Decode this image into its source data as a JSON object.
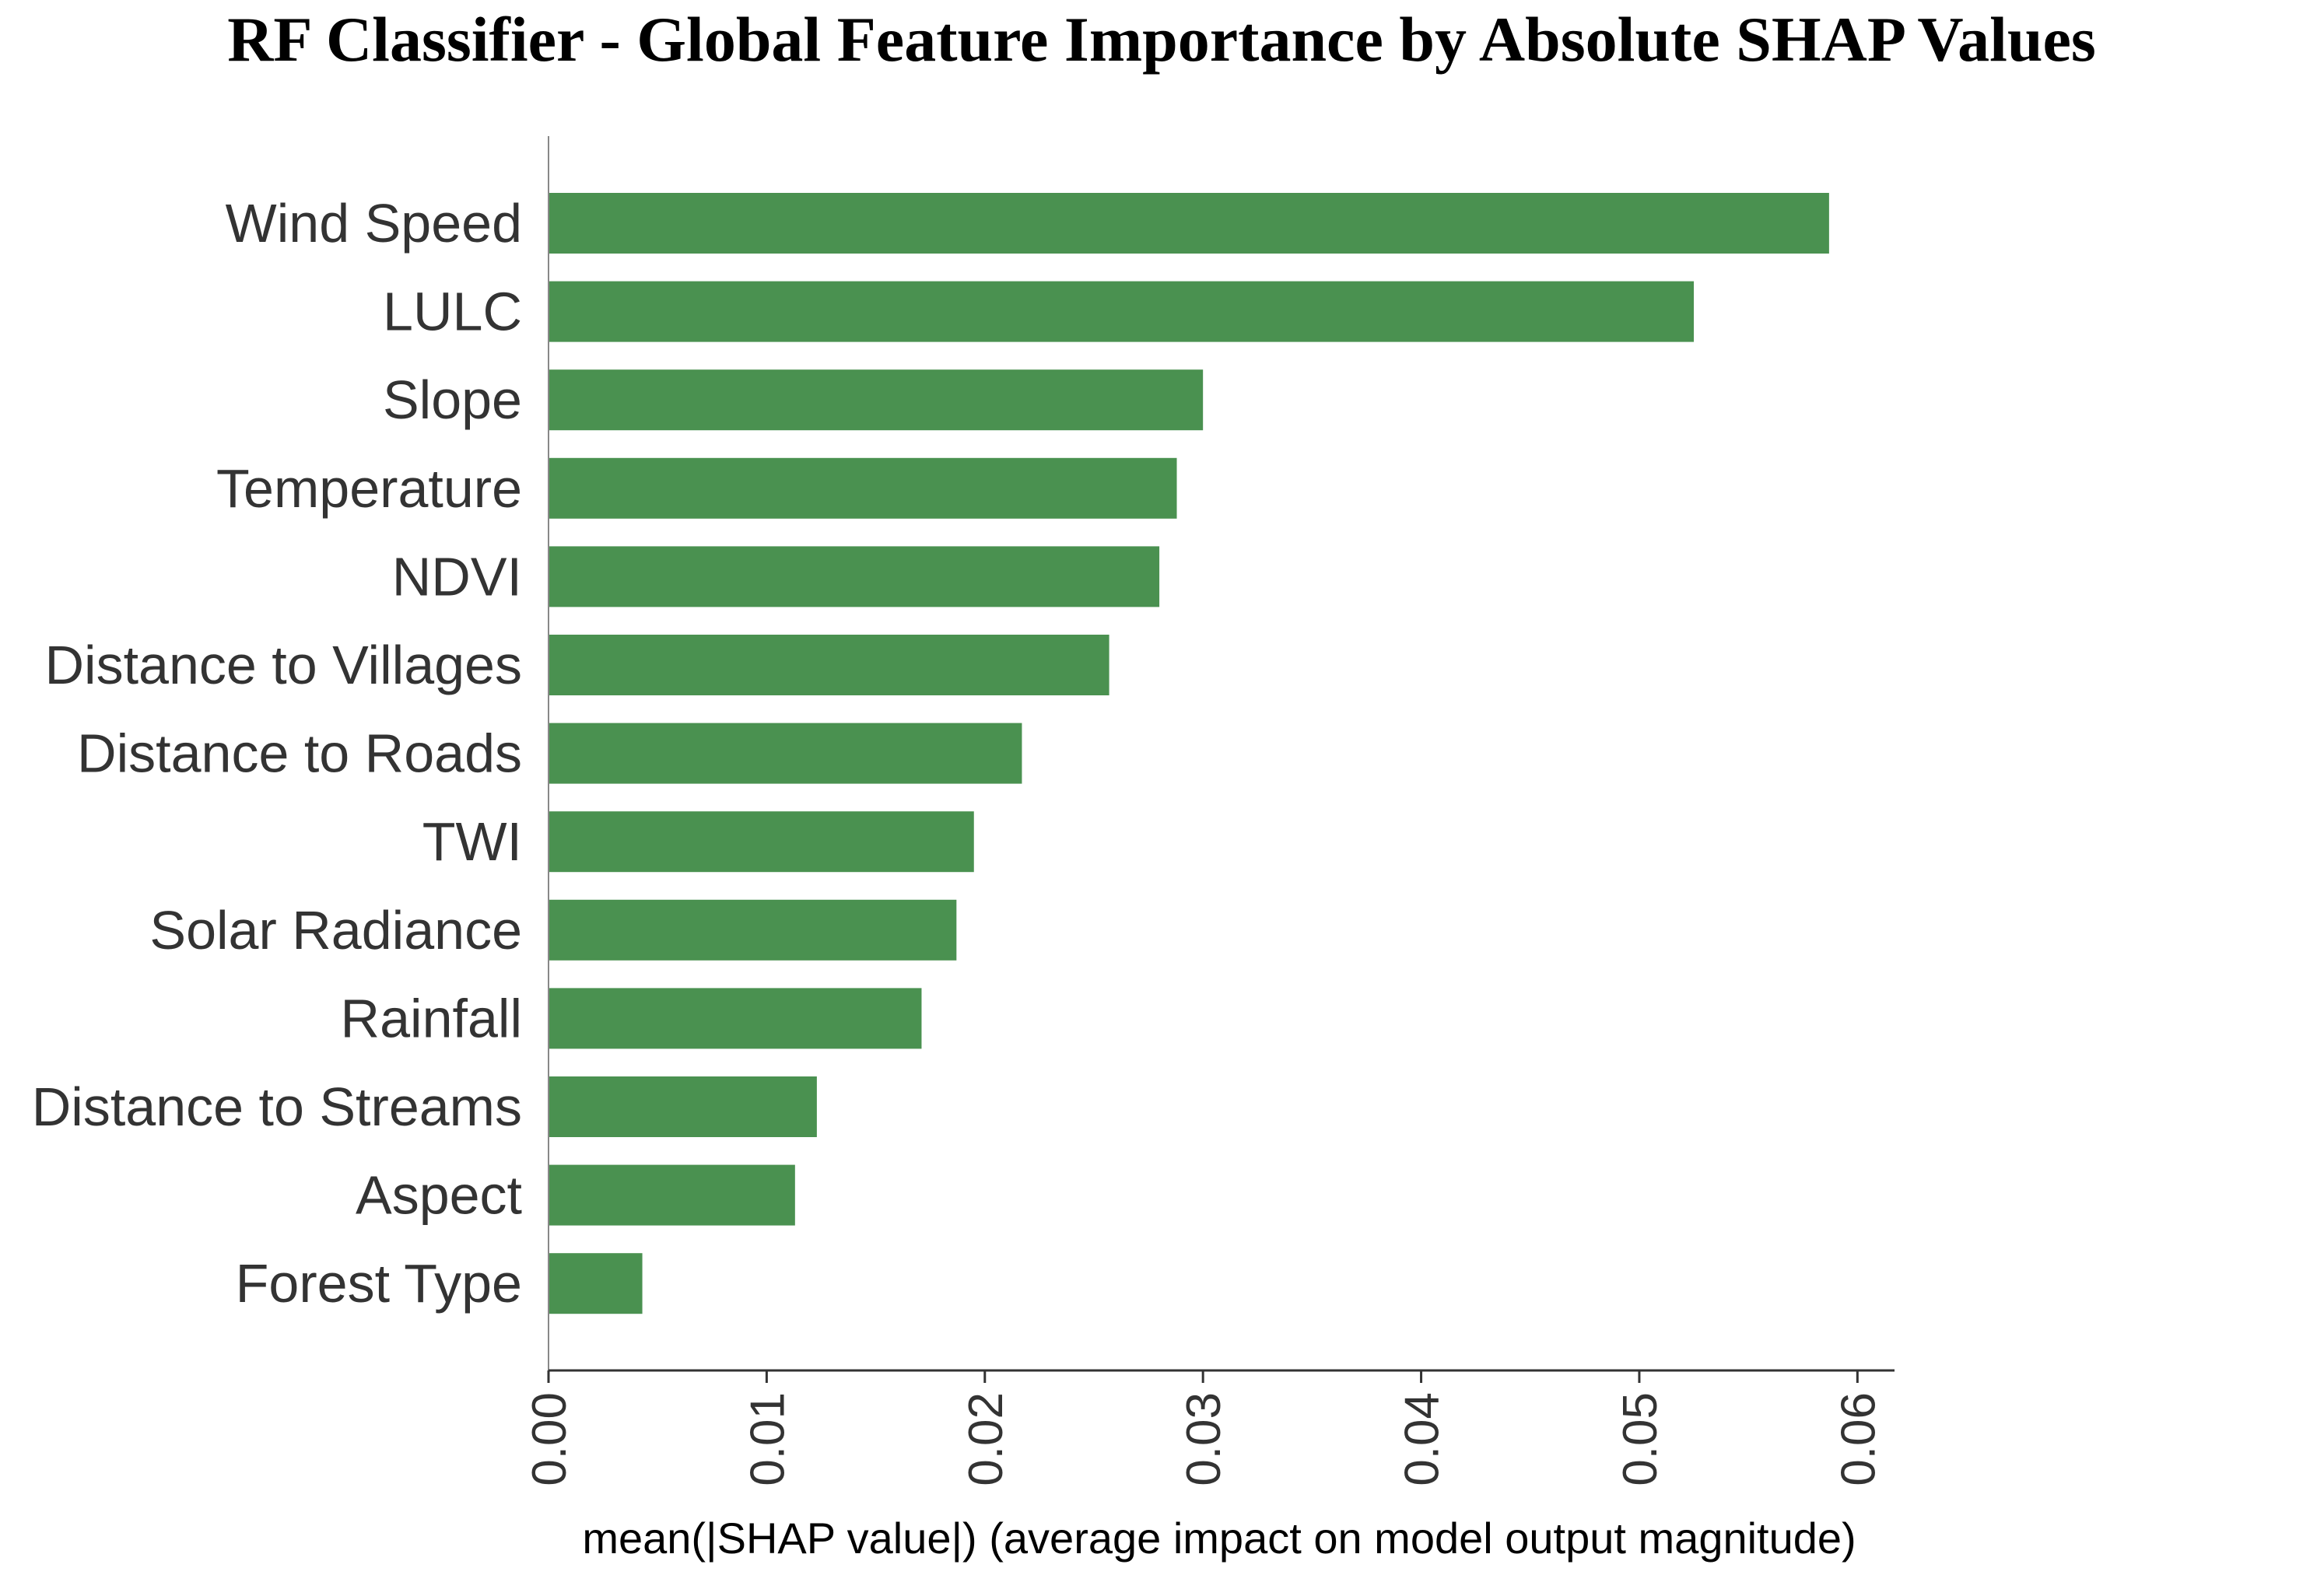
{
  "chart_data": {
    "type": "bar",
    "orientation": "horizontal",
    "title": "RF Classifier - Global Feature Importance by Absolute SHAP Values",
    "xlabel": "mean(|SHAP value|) (average impact on model output magnitude)",
    "ylabel": "",
    "categories": [
      "Wind Speed",
      "LULC",
      "Slope",
      "Temperature",
      "NDVI",
      "Distance to Villages",
      "Distance to Roads",
      "TWI",
      "Solar Radiance",
      "Rainfall",
      "Distance to Streams",
      "Aspect",
      "Forest Type"
    ],
    "values": [
      0.0587,
      0.0525,
      0.03,
      0.0288,
      0.028,
      0.0257,
      0.0217,
      0.0195,
      0.0187,
      0.0171,
      0.0123,
      0.0113,
      0.0043
    ],
    "xlim": [
      0,
      0.0617
    ],
    "xticks": [
      0.0,
      0.01,
      0.02,
      0.03,
      0.04,
      0.05,
      0.06
    ],
    "xtick_labels": [
      "0.00",
      "0.01",
      "0.02",
      "0.03",
      "0.04",
      "0.05",
      "0.06"
    ],
    "grid": false,
    "bar_color": "#4a9150",
    "axis_color": "#333333"
  }
}
